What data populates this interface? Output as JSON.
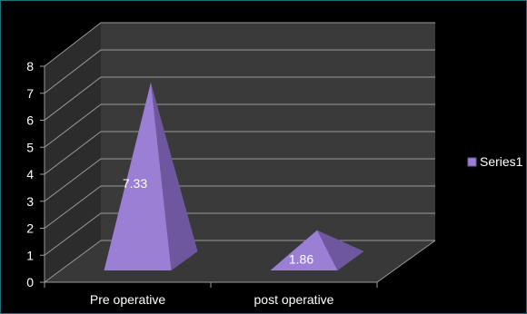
{
  "chart_data": {
    "type": "bar",
    "shape": "3d-pyramid",
    "categories": [
      "Pre operative",
      "post operative"
    ],
    "series": [
      {
        "name": "Series1",
        "values": [
          7.33,
          1.86
        ],
        "labels": [
          "7.33",
          "1.86"
        ],
        "color": "#9b7fd4"
      }
    ],
    "ylim": [
      0,
      8
    ],
    "yticks": [
      "0",
      "1",
      "2",
      "3",
      "4",
      "5",
      "6",
      "7",
      "8"
    ],
    "grid": true,
    "legend": "right",
    "colors": {
      "background": "#000000",
      "back_wall": "#3a3a3a",
      "side_wall": "#2c2c2c",
      "floor": "#383838",
      "gridline": "#9a9a9a",
      "pyramid_front": "#9b7fd4",
      "pyramid_side": "#6f57a0",
      "text": "#ffffff"
    }
  }
}
